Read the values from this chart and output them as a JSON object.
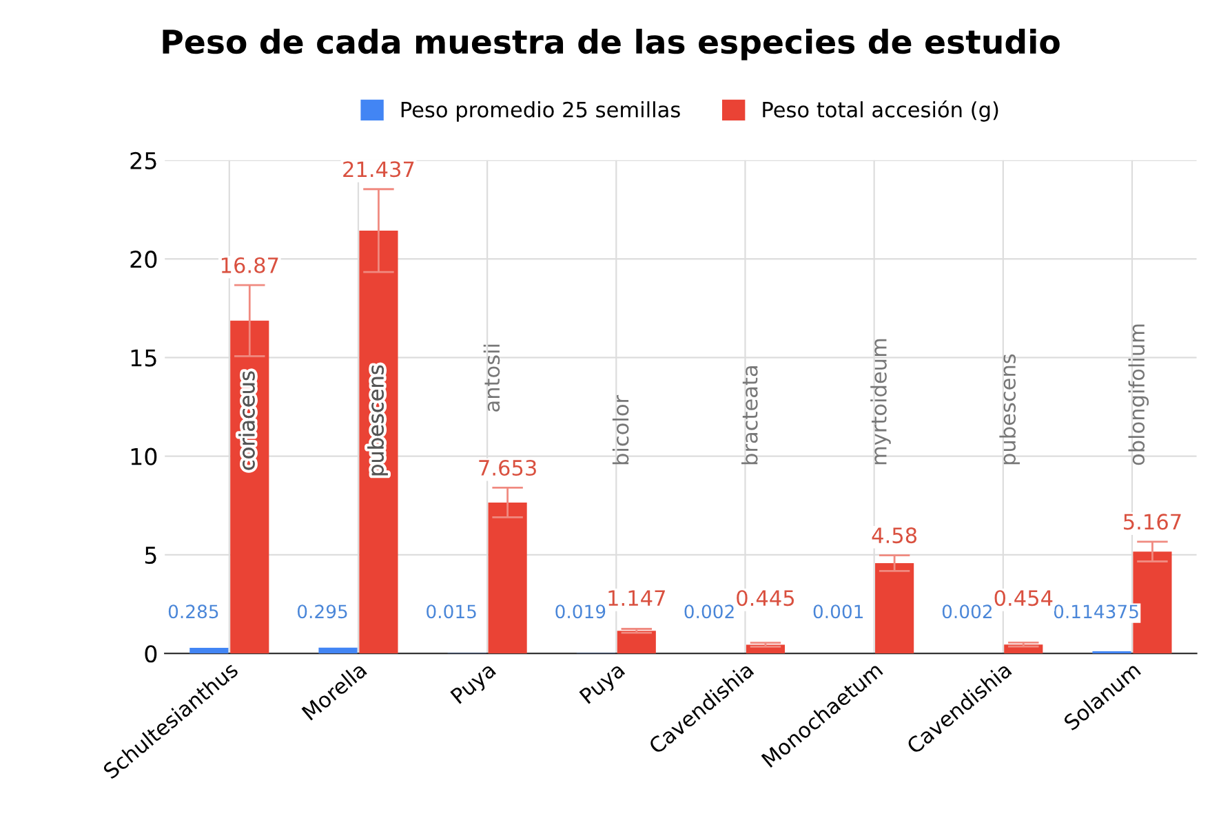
{
  "chart_data": {
    "type": "bar",
    "title": "Peso de cada muestra de las especies de estudio",
    "categories": [
      "Schultesianthus",
      "Morella",
      "Puya",
      "Puya",
      "Cavendishia",
      "Monochaetum",
      "Cavendishia",
      "Solanum"
    ],
    "series": [
      {
        "name": "Peso promedio 25 semillas",
        "color": "#4285f4",
        "values": [
          0.285,
          0.295,
          0.015,
          0.019,
          0.002,
          0.001,
          0.002,
          0.114375
        ],
        "value_labels": [
          "0.285",
          "0.295",
          "0.015",
          "0.019",
          "0.002",
          "0.001",
          "0.002",
          "0.114375"
        ]
      },
      {
        "name": "Peso total accesión (g)",
        "color": "#ea4335",
        "values": [
          16.87,
          21.437,
          7.653,
          1.147,
          0.445,
          4.58,
          0.454,
          5.167
        ],
        "errors": [
          1.8,
          2.1,
          0.75,
          0.1,
          0.1,
          0.4,
          0.1,
          0.5
        ],
        "value_labels": [
          "16.87",
          "21.437",
          "7.653",
          "1.147",
          "0.445",
          "4.58",
          "0.454",
          "5.167"
        ]
      }
    ],
    "annotations": [
      "coriaceus",
      "pubescens",
      "antosii",
      "bicolor",
      "bracteata",
      "myrtoideum",
      "pubescens",
      "oblongifolium"
    ],
    "ylim": [
      0,
      25
    ],
    "yticks": [
      0,
      5,
      10,
      15,
      20,
      25
    ],
    "grid": true,
    "legend": "top"
  }
}
